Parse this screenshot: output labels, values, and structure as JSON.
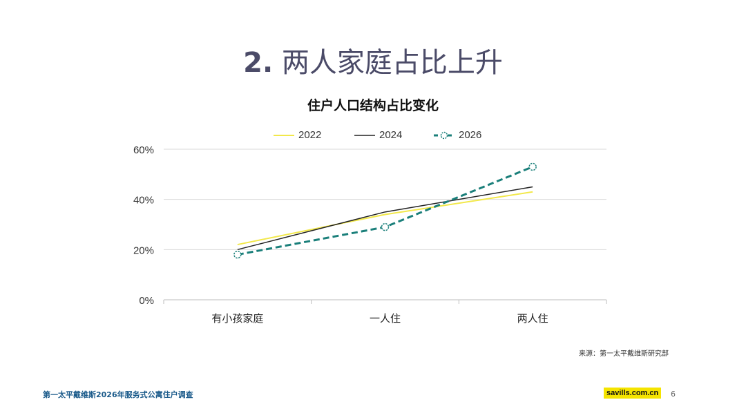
{
  "page": {
    "title_number": "2.",
    "title_text": "两人家庭占比上升",
    "source": "来源：第一太平戴维斯研究部",
    "footer_text": "第一太平戴维斯2026年服务式公寓住户调查",
    "brand": "savills.com.cn",
    "page_number": "6"
  },
  "chart_data": {
    "type": "line",
    "title": "住户人口结构占比变化",
    "categories": [
      "有小孩家庭",
      "一人住",
      "两人住"
    ],
    "series": [
      {
        "name": "2022",
        "values": [
          22,
          34,
          43
        ],
        "color": "#f2e84a",
        "style": "solid",
        "markers": false
      },
      {
        "name": "2024",
        "values": [
          20,
          35,
          45
        ],
        "color": "#222222",
        "style": "solid",
        "markers": false
      },
      {
        "name": "2026",
        "values": [
          18,
          29,
          53
        ],
        "color": "#1a7f7a",
        "style": "dashed",
        "markers": true
      }
    ],
    "ylim": [
      0,
      60
    ],
    "yticks": [
      {
        "value": 0,
        "label": "0%"
      },
      {
        "value": 20,
        "label": "20%"
      },
      {
        "value": 40,
        "label": "40%"
      },
      {
        "value": 60,
        "label": "60%"
      }
    ],
    "xlabel": "",
    "ylabel": "",
    "grid": true,
    "legend_position": "top-center"
  }
}
